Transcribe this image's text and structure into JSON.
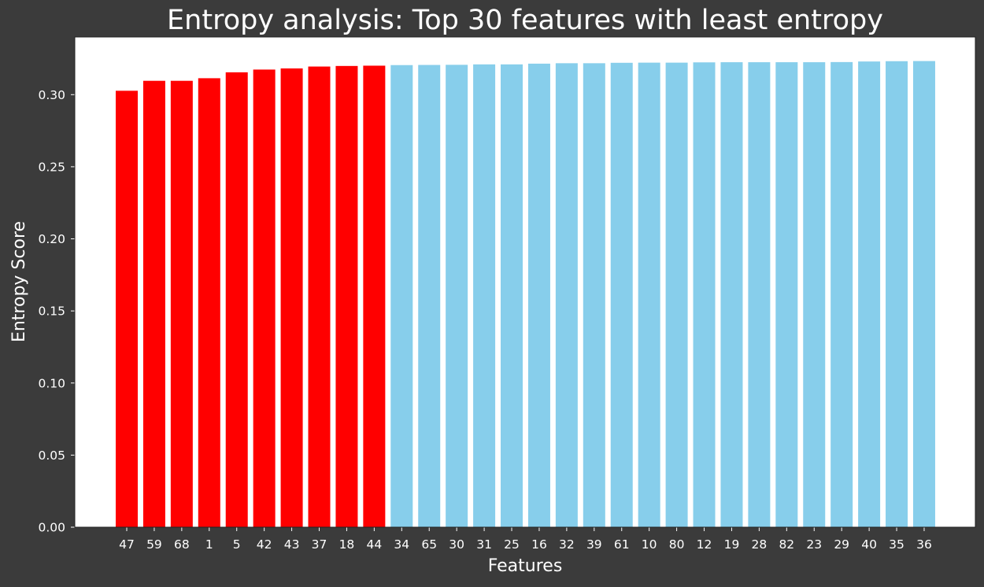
{
  "chart_data": {
    "type": "bar",
    "title": "Entropy analysis: Top 30 features with least entropy",
    "xlabel": "Features",
    "ylabel": "Entropy Score",
    "categories": [
      "47",
      "59",
      "68",
      "1",
      "5",
      "42",
      "43",
      "37",
      "18",
      "44",
      "34",
      "65",
      "30",
      "31",
      "25",
      "16",
      "32",
      "39",
      "61",
      "10",
      "80",
      "12",
      "19",
      "28",
      "82",
      "23",
      "29",
      "40",
      "35",
      "36"
    ],
    "values": [
      0.3027,
      0.3096,
      0.3096,
      0.3114,
      0.3155,
      0.3174,
      0.3182,
      0.3195,
      0.3199,
      0.3201,
      0.3205,
      0.3206,
      0.3207,
      0.321,
      0.321,
      0.3215,
      0.3218,
      0.3218,
      0.3221,
      0.3222,
      0.3222,
      0.3224,
      0.3225,
      0.3225,
      0.3225,
      0.3225,
      0.3226,
      0.323,
      0.3232,
      0.3233
    ],
    "bar_colors": [
      "#ff0000",
      "#ff0000",
      "#ff0000",
      "#ff0000",
      "#ff0000",
      "#ff0000",
      "#ff0000",
      "#ff0000",
      "#ff0000",
      "#ff0000",
      "#87ceeb",
      "#87ceeb",
      "#87ceeb",
      "#87ceeb",
      "#87ceeb",
      "#87ceeb",
      "#87ceeb",
      "#87ceeb",
      "#87ceeb",
      "#87ceeb",
      "#87ceeb",
      "#87ceeb",
      "#87ceeb",
      "#87ceeb",
      "#87ceeb",
      "#87ceeb",
      "#87ceeb",
      "#87ceeb",
      "#87ceeb",
      "#87ceeb"
    ],
    "ylim": [
      0,
      0.34
    ],
    "yticks": [
      0.0,
      0.05,
      0.1,
      0.15,
      0.2,
      0.25,
      0.3
    ],
    "ytick_labels": [
      "0.00",
      "0.05",
      "0.10",
      "0.15",
      "0.20",
      "0.25",
      "0.30"
    ],
    "grid": false,
    "legend": "none",
    "colors": {
      "figure_background": "#3b3b3b",
      "plot_background": "#ffffff",
      "text": "#ffffff",
      "highlight_bars": "#ff0000",
      "other_bars": "#87ceeb"
    }
  }
}
